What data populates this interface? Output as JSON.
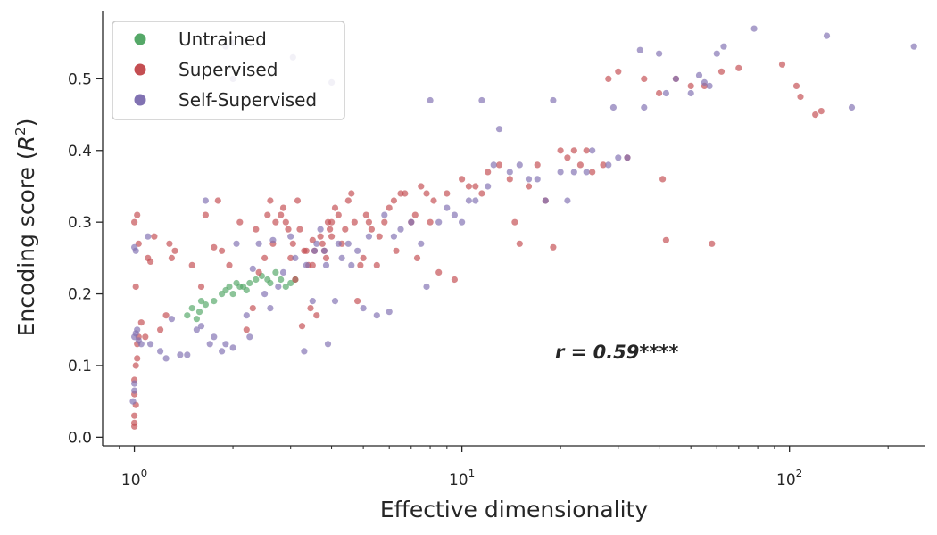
{
  "chart_data": {
    "type": "scatter",
    "xlabel": "Effective dimensionality",
    "ylabel_prefix": "Encoding score (",
    "ylabel_var": "R",
    "ylabel_exp": "2",
    "ylabel_suffix": ")",
    "x_scale": "log",
    "xlim": [
      0.8,
      260
    ],
    "ylim": [
      -0.012,
      0.595
    ],
    "x_ticks": [
      {
        "value": 1,
        "base": "10",
        "exp": "0"
      },
      {
        "value": 10,
        "base": "10",
        "exp": "1"
      },
      {
        "value": 100,
        "base": "10",
        "exp": "2"
      }
    ],
    "y_ticks": [
      {
        "value": 0.0,
        "label": "0.0"
      },
      {
        "value": 0.1,
        "label": "0.1"
      },
      {
        "value": 0.2,
        "label": "0.2"
      },
      {
        "value": 0.3,
        "label": "0.3"
      },
      {
        "value": 0.4,
        "label": "0.4"
      },
      {
        "value": 0.5,
        "label": "0.5"
      }
    ],
    "grid": false,
    "legend_position": "top-left",
    "annotation": "r = 0.59****",
    "series": [
      {
        "name": "Untrained",
        "color": "#55a868",
        "points": [
          [
            1.45,
            0.17
          ],
          [
            1.5,
            0.18
          ],
          [
            1.55,
            0.165
          ],
          [
            1.58,
            0.175
          ],
          [
            1.6,
            0.19
          ],
          [
            1.65,
            0.185
          ],
          [
            1.75,
            0.19
          ],
          [
            1.85,
            0.2
          ],
          [
            1.9,
            0.205
          ],
          [
            1.95,
            0.21
          ],
          [
            2.0,
            0.2
          ],
          [
            2.05,
            0.215
          ],
          [
            2.1,
            0.21
          ],
          [
            2.15,
            0.21
          ],
          [
            2.2,
            0.205
          ],
          [
            2.25,
            0.215
          ],
          [
            2.35,
            0.22
          ],
          [
            2.45,
            0.225
          ],
          [
            2.55,
            0.22
          ],
          [
            2.6,
            0.215
          ],
          [
            2.7,
            0.23
          ],
          [
            2.8,
            0.22
          ],
          [
            2.9,
            0.21
          ],
          [
            3.0,
            0.215
          ],
          [
            3.1,
            0.22
          ]
        ]
      },
      {
        "name": "Supervised",
        "color": "#c44e52",
        "points": [
          [
            1.0,
            0.015
          ],
          [
            1.0,
            0.02
          ],
          [
            1.0,
            0.03
          ],
          [
            1.01,
            0.045
          ],
          [
            1.0,
            0.06
          ],
          [
            1.0,
            0.08
          ],
          [
            1.01,
            0.1
          ],
          [
            1.02,
            0.11
          ],
          [
            1.02,
            0.13
          ],
          [
            1.03,
            0.14
          ],
          [
            1.01,
            0.21
          ],
          [
            1.0,
            0.3
          ],
          [
            1.02,
            0.31
          ],
          [
            1.03,
            0.27
          ],
          [
            1.05,
            0.16
          ],
          [
            1.08,
            0.14
          ],
          [
            1.1,
            0.25
          ],
          [
            1.12,
            0.245
          ],
          [
            1.15,
            0.28
          ],
          [
            1.2,
            0.15
          ],
          [
            1.25,
            0.17
          ],
          [
            1.3,
            0.25
          ],
          [
            1.28,
            0.27
          ],
          [
            1.33,
            0.26
          ],
          [
            1.5,
            0.24
          ],
          [
            1.6,
            0.21
          ],
          [
            1.65,
            0.31
          ],
          [
            1.75,
            0.265
          ],
          [
            1.8,
            0.33
          ],
          [
            1.85,
            0.26
          ],
          [
            1.95,
            0.24
          ],
          [
            2.1,
            0.3
          ],
          [
            2.2,
            0.15
          ],
          [
            2.3,
            0.18
          ],
          [
            2.35,
            0.29
          ],
          [
            2.4,
            0.23
          ],
          [
            2.5,
            0.25
          ],
          [
            2.55,
            0.31
          ],
          [
            2.6,
            0.33
          ],
          [
            2.65,
            0.27
          ],
          [
            2.7,
            0.3
          ],
          [
            2.8,
            0.31
          ],
          [
            2.85,
            0.32
          ],
          [
            2.9,
            0.3
          ],
          [
            2.95,
            0.29
          ],
          [
            3.0,
            0.25
          ],
          [
            3.05,
            0.27
          ],
          [
            3.1,
            0.22
          ],
          [
            3.15,
            0.33
          ],
          [
            3.2,
            0.29
          ],
          [
            3.3,
            0.26
          ],
          [
            3.35,
            0.26
          ],
          [
            3.4,
            0.24
          ],
          [
            3.45,
            0.18
          ],
          [
            3.5,
            0.24
          ],
          [
            3.55,
            0.26
          ],
          [
            3.6,
            0.17
          ],
          [
            3.7,
            0.28
          ],
          [
            3.75,
            0.27
          ],
          [
            3.8,
            0.26
          ],
          [
            3.85,
            0.25
          ],
          [
            3.9,
            0.3
          ],
          [
            3.95,
            0.29
          ],
          [
            4.0,
            0.3
          ],
          [
            4.1,
            0.32
          ],
          [
            4.2,
            0.31
          ],
          [
            4.3,
            0.27
          ],
          [
            4.4,
            0.29
          ],
          [
            4.5,
            0.33
          ],
          [
            4.6,
            0.34
          ],
          [
            4.7,
            0.3
          ],
          [
            4.8,
            0.19
          ],
          [
            4.9,
            0.24
          ],
          [
            5.0,
            0.25
          ],
          [
            5.1,
            0.31
          ],
          [
            5.2,
            0.3
          ],
          [
            5.3,
            0.29
          ],
          [
            5.5,
            0.24
          ],
          [
            5.6,
            0.28
          ],
          [
            5.8,
            0.3
          ],
          [
            6.0,
            0.32
          ],
          [
            6.2,
            0.33
          ],
          [
            6.3,
            0.26
          ],
          [
            6.5,
            0.34
          ],
          [
            6.7,
            0.34
          ],
          [
            7.0,
            0.3
          ],
          [
            7.2,
            0.31
          ],
          [
            7.3,
            0.25
          ],
          [
            7.5,
            0.35
          ],
          [
            7.8,
            0.34
          ],
          [
            8.0,
            0.3
          ],
          [
            8.2,
            0.33
          ],
          [
            8.5,
            0.23
          ],
          [
            9.0,
            0.34
          ],
          [
            9.5,
            0.22
          ],
          [
            10.0,
            0.36
          ],
          [
            10.5,
            0.35
          ],
          [
            11.0,
            0.35
          ],
          [
            11.5,
            0.34
          ],
          [
            12.0,
            0.37
          ],
          [
            13.0,
            0.38
          ],
          [
            14.0,
            0.36
          ],
          [
            14.5,
            0.3
          ],
          [
            15.0,
            0.27
          ],
          [
            16.0,
            0.35
          ],
          [
            17.0,
            0.38
          ],
          [
            18.0,
            0.33
          ],
          [
            19.0,
            0.265
          ],
          [
            20.0,
            0.4
          ],
          [
            21.0,
            0.39
          ],
          [
            22.0,
            0.4
          ],
          [
            23.0,
            0.38
          ],
          [
            24.0,
            0.4
          ],
          [
            25.0,
            0.37
          ],
          [
            27.0,
            0.38
          ],
          [
            28.0,
            0.5
          ],
          [
            30.0,
            0.51
          ],
          [
            32.0,
            0.39
          ],
          [
            36.0,
            0.5
          ],
          [
            40.0,
            0.48
          ],
          [
            41.0,
            0.36
          ],
          [
            42.0,
            0.275
          ],
          [
            45.0,
            0.5
          ],
          [
            50.0,
            0.49
          ],
          [
            55.0,
            0.49
          ],
          [
            58.0,
            0.27
          ],
          [
            62.0,
            0.51
          ],
          [
            70.0,
            0.515
          ],
          [
            95.0,
            0.52
          ],
          [
            105.0,
            0.49
          ],
          [
            108.0,
            0.475
          ],
          [
            120.0,
            0.45
          ],
          [
            125.0,
            0.455
          ],
          [
            3.25,
            0.155
          ],
          [
            3.5,
            0.275
          ],
          [
            4.0,
            0.28
          ]
        ]
      },
      {
        "name": "Self-Supervised",
        "color": "#8172b2",
        "points": [
          [
            0.99,
            0.05
          ],
          [
            1.0,
            0.065
          ],
          [
            1.0,
            0.075
          ],
          [
            1.0,
            0.14
          ],
          [
            1.01,
            0.145
          ],
          [
            1.02,
            0.15
          ],
          [
            1.0,
            0.265
          ],
          [
            1.01,
            0.26
          ],
          [
            1.03,
            0.135
          ],
          [
            1.05,
            0.13
          ],
          [
            1.1,
            0.28
          ],
          [
            1.12,
            0.13
          ],
          [
            1.2,
            0.12
          ],
          [
            1.25,
            0.11
          ],
          [
            1.3,
            0.165
          ],
          [
            1.38,
            0.115
          ],
          [
            1.45,
            0.115
          ],
          [
            1.55,
            0.15
          ],
          [
            1.6,
            0.155
          ],
          [
            1.65,
            0.33
          ],
          [
            1.7,
            0.13
          ],
          [
            1.75,
            0.14
          ],
          [
            1.85,
            0.12
          ],
          [
            1.9,
            0.13
          ],
          [
            2.0,
            0.125
          ],
          [
            2.05,
            0.27
          ],
          [
            2.2,
            0.17
          ],
          [
            2.25,
            0.14
          ],
          [
            2.3,
            0.235
          ],
          [
            2.4,
            0.27
          ],
          [
            2.5,
            0.2
          ],
          [
            2.6,
            0.18
          ],
          [
            2.65,
            0.275
          ],
          [
            2.75,
            0.21
          ],
          [
            2.85,
            0.23
          ],
          [
            3.0,
            0.28
          ],
          [
            3.05,
            0.53
          ],
          [
            3.1,
            0.25
          ],
          [
            3.3,
            0.12
          ],
          [
            3.35,
            0.24
          ],
          [
            3.5,
            0.19
          ],
          [
            3.55,
            0.26
          ],
          [
            3.6,
            0.27
          ],
          [
            3.7,
            0.29
          ],
          [
            3.8,
            0.26
          ],
          [
            3.85,
            0.24
          ],
          [
            3.9,
            0.13
          ],
          [
            4.0,
            0.495
          ],
          [
            4.1,
            0.19
          ],
          [
            4.2,
            0.27
          ],
          [
            4.3,
            0.25
          ],
          [
            4.5,
            0.27
          ],
          [
            4.6,
            0.24
          ],
          [
            4.8,
            0.26
          ],
          [
            5.0,
            0.18
          ],
          [
            5.2,
            0.28
          ],
          [
            5.5,
            0.17
          ],
          [
            5.8,
            0.31
          ],
          [
            6.0,
            0.175
          ],
          [
            6.2,
            0.28
          ],
          [
            6.5,
            0.29
          ],
          [
            7.0,
            0.3
          ],
          [
            7.5,
            0.27
          ],
          [
            7.8,
            0.21
          ],
          [
            8.0,
            0.47
          ],
          [
            8.5,
            0.3
          ],
          [
            9.0,
            0.32
          ],
          [
            9.5,
            0.31
          ],
          [
            10.0,
            0.3
          ],
          [
            10.5,
            0.33
          ],
          [
            11.0,
            0.33
          ],
          [
            11.5,
            0.47
          ],
          [
            12.0,
            0.35
          ],
          [
            12.5,
            0.38
          ],
          [
            13.0,
            0.43
          ],
          [
            14.0,
            0.37
          ],
          [
            15.0,
            0.38
          ],
          [
            16.0,
            0.36
          ],
          [
            17.0,
            0.36
          ],
          [
            18.0,
            0.33
          ],
          [
            19.0,
            0.47
          ],
          [
            20.0,
            0.37
          ],
          [
            21.0,
            0.33
          ],
          [
            22.0,
            0.37
          ],
          [
            24.0,
            0.37
          ],
          [
            25.0,
            0.4
          ],
          [
            28.0,
            0.38
          ],
          [
            29.0,
            0.46
          ],
          [
            30.0,
            0.39
          ],
          [
            32.0,
            0.39
          ],
          [
            35.0,
            0.54
          ],
          [
            36.0,
            0.46
          ],
          [
            40.0,
            0.535
          ],
          [
            42.0,
            0.48
          ],
          [
            45.0,
            0.5
          ],
          [
            50.0,
            0.48
          ],
          [
            53.0,
            0.505
          ],
          [
            55.0,
            0.495
          ],
          [
            57.0,
            0.49
          ],
          [
            60.0,
            0.535
          ],
          [
            63.0,
            0.545
          ],
          [
            78.0,
            0.57
          ],
          [
            130.0,
            0.56
          ],
          [
            155.0,
            0.46
          ],
          [
            240.0,
            0.545
          ],
          [
            2.0,
            0.55
          ],
          [
            1.9,
            0.545
          ],
          [
            2.0,
            0.5
          ]
        ]
      }
    ]
  }
}
